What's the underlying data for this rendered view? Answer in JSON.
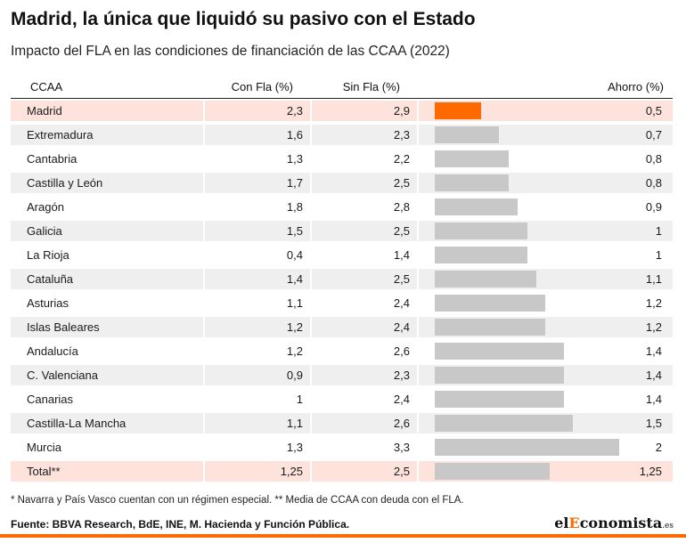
{
  "title": "Madrid, la única que liquidó su pasivo con el Estado",
  "subtitle": "Impacto del FLA en las condiciones de financiación de las CCAA (2022)",
  "columns": {
    "ccaa": "CCAA",
    "con_fla": "Con Fla (%)",
    "sin_fla": "Sin Fla (%)",
    "ahorro": "Ahorro (%)"
  },
  "chart_data": {
    "type": "table",
    "bar_column": "ahorro",
    "bar_max": 2.0,
    "rows": [
      {
        "ccaa": "Madrid",
        "con_fla": "2,3",
        "sin_fla": "2,9",
        "ahorro": "0,5",
        "ahorro_value": 0.5,
        "highlight": true
      },
      {
        "ccaa": "Extremadura",
        "con_fla": "1,6",
        "sin_fla": "2,3",
        "ahorro": "0,7",
        "ahorro_value": 0.7
      },
      {
        "ccaa": "Cantabria",
        "con_fla": "1,3",
        "sin_fla": "2,2",
        "ahorro": "0,8",
        "ahorro_value": 0.8
      },
      {
        "ccaa": "Castilla y León",
        "con_fla": "1,7",
        "sin_fla": "2,5",
        "ahorro": "0,8",
        "ahorro_value": 0.8
      },
      {
        "ccaa": "Aragón",
        "con_fla": "1,8",
        "sin_fla": "2,8",
        "ahorro": "0,9",
        "ahorro_value": 0.9
      },
      {
        "ccaa": "Galicia",
        "con_fla": "1,5",
        "sin_fla": "2,5",
        "ahorro": "1",
        "ahorro_value": 1.0
      },
      {
        "ccaa": "La Rioja",
        "con_fla": "0,4",
        "sin_fla": "1,4",
        "ahorro": "1",
        "ahorro_value": 1.0
      },
      {
        "ccaa": "Cataluña",
        "con_fla": "1,4",
        "sin_fla": "2,5",
        "ahorro": "1,1",
        "ahorro_value": 1.1
      },
      {
        "ccaa": "Asturias",
        "con_fla": "1,1",
        "sin_fla": "2,4",
        "ahorro": "1,2",
        "ahorro_value": 1.2
      },
      {
        "ccaa": "Islas Baleares",
        "con_fla": "1,2",
        "sin_fla": "2,4",
        "ahorro": "1,2",
        "ahorro_value": 1.2
      },
      {
        "ccaa": "Andalucía",
        "con_fla": "1,2",
        "sin_fla": "2,6",
        "ahorro": "1,4",
        "ahorro_value": 1.4
      },
      {
        "ccaa": "C. Valenciana",
        "con_fla": "0,9",
        "sin_fla": "2,3",
        "ahorro": "1,4",
        "ahorro_value": 1.4
      },
      {
        "ccaa": "Canarias",
        "con_fla": "1",
        "sin_fla": "2,4",
        "ahorro": "1,4",
        "ahorro_value": 1.4
      },
      {
        "ccaa": "Castilla-La Mancha",
        "con_fla": "1,1",
        "sin_fla": "2,6",
        "ahorro": "1,5",
        "ahorro_value": 1.5
      },
      {
        "ccaa": "Murcia",
        "con_fla": "1,3",
        "sin_fla": "3,3",
        "ahorro": "2",
        "ahorro_value": 2.0
      },
      {
        "ccaa": "Total**",
        "con_fla": "1,25",
        "sin_fla": "2,5",
        "ahorro": "1,25",
        "ahorro_value": 1.25,
        "highlight": true,
        "total": true
      }
    ]
  },
  "colors": {
    "highlight_bar": "#ff6a00",
    "bar": "#c8c8c8",
    "highlight_row": "#fde3dc",
    "alt_row": "#efefef"
  },
  "footnote": "* Navarra y País Vasco cuentan con un régimen especial. ** Media de CCAA con deuda con el FLA.",
  "source": "Fuente: BBVA Research, BdE, INE, M. Hacienda y Función Pública.",
  "logo": {
    "prefix": "el",
    "e": "E",
    "rest": "conomista",
    "suffix": ".es"
  }
}
